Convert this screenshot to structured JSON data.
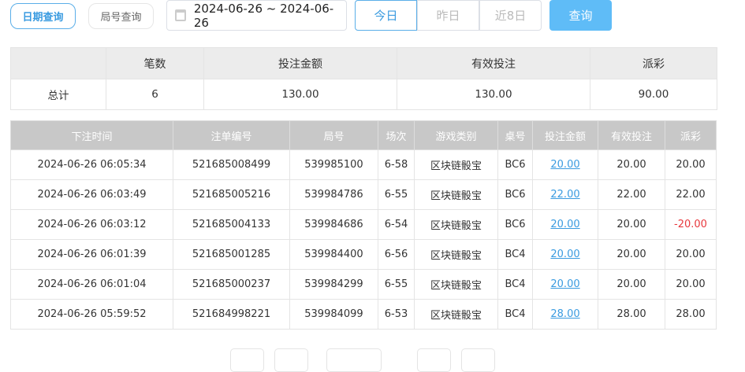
{
  "toolbar": {
    "tab_date": "日期查询",
    "tab_round": "局号查询",
    "date_range": "2024-06-26 ~ 2024-06-26",
    "today": "今日",
    "yesterday": "昨日",
    "last8": "近8日",
    "query": "查询"
  },
  "summary": {
    "headers": [
      "",
      "笔数",
      "投注金额",
      "有效投注",
      "派彩"
    ],
    "row": [
      "总计",
      "6",
      "130.00",
      "130.00",
      "90.00"
    ]
  },
  "details": {
    "headers": [
      "下注时间",
      "注单编号",
      "局号",
      "场次",
      "游戏类别",
      "桌号",
      "投注金额",
      "有效投注",
      "派彩"
    ],
    "rows": [
      [
        "2024-06-26 06:05:34",
        "521685008499",
        "539985100",
        "6-58",
        "区块链骰宝",
        "BC6",
        "20.00",
        "20.00",
        "20.00"
      ],
      [
        "2024-06-26 06:03:49",
        "521685005216",
        "539984786",
        "6-55",
        "区块链骰宝",
        "BC6",
        "22.00",
        "22.00",
        "22.00"
      ],
      [
        "2024-06-26 06:03:12",
        "521685004133",
        "539984686",
        "6-54",
        "区块链骰宝",
        "BC6",
        "20.00",
        "20.00",
        "-20.00"
      ],
      [
        "2024-06-26 06:01:39",
        "521685001285",
        "539984400",
        "6-56",
        "区块链骰宝",
        "BC4",
        "20.00",
        "20.00",
        "20.00"
      ],
      [
        "2024-06-26 06:01:04",
        "521685000237",
        "539984299",
        "6-55",
        "区块链骰宝",
        "BC4",
        "20.00",
        "20.00",
        "20.00"
      ],
      [
        "2024-06-26 05:59:52",
        "521684998221",
        "539984099",
        "6-53",
        "区块链骰宝",
        "BC4",
        "28.00",
        "28.00",
        "28.00"
      ]
    ]
  },
  "colors": {
    "accent": "#3a9be0",
    "query_bg": "#5fbcf7",
    "negative": "#e8383d"
  }
}
